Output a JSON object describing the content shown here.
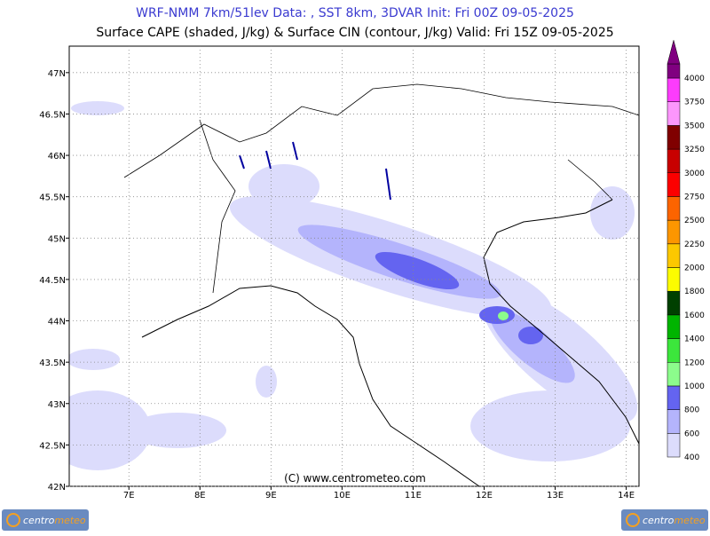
{
  "header": {
    "title": "WRF-NMM 7km/51lev  Data: , SST 8km, 3DVAR  Init: Fri 00Z 09-05-2025",
    "subtitle": "Surface CAPE (shaded, J/kg) & Surface CIN (contour, J/kg)  Valid: Fri 15Z 09-05-2025"
  },
  "map": {
    "xlim": [
      6.16,
      14.18
    ],
    "ylim": [
      42,
      47.32
    ],
    "grid": true,
    "xticks": [
      {
        "value": 7,
        "label": "7E"
      },
      {
        "value": 8,
        "label": "8E"
      },
      {
        "value": 9,
        "label": "9E"
      },
      {
        "value": 10,
        "label": "10E"
      },
      {
        "value": 11,
        "label": "11E"
      },
      {
        "value": 12,
        "label": "12E"
      },
      {
        "value": 13,
        "label": "13E"
      },
      {
        "value": 14,
        "label": "14E"
      }
    ],
    "yticks": [
      {
        "value": 42,
        "label": "42N"
      },
      {
        "value": 42.5,
        "label": "42.5N"
      },
      {
        "value": 43,
        "label": "43N"
      },
      {
        "value": 43.5,
        "label": "43.5N"
      },
      {
        "value": 44,
        "label": "44N"
      },
      {
        "value": 44.5,
        "label": "44.5N"
      },
      {
        "value": 45,
        "label": "45N"
      },
      {
        "value": 45.5,
        "label": "45.5N"
      },
      {
        "value": 46,
        "label": "46N"
      },
      {
        "value": 46.5,
        "label": "46.5N"
      },
      {
        "value": 47,
        "label": "47N"
      }
    ]
  },
  "colorbar": {
    "levels": [
      400,
      600,
      800,
      1000,
      1200,
      1400,
      1600,
      1800,
      2000,
      2250,
      2500,
      2750,
      3000,
      3250,
      3500,
      3750,
      4000
    ],
    "interval_colors": [
      "#dcdcfc",
      "#b4b4fc",
      "#6464f0",
      "#8cfc8c",
      "#3ce63c",
      "#00b400",
      "#004000",
      "#fcfc00",
      "#fcc800",
      "#fc9600",
      "#fc6400",
      "#fc0000",
      "#c80000",
      "#800000",
      "#fc96fc",
      "#fc3cfc"
    ],
    "extend_color": "#800080"
  },
  "copyright": "(C) www.centrometeo.com",
  "logo_text": [
    "centro",
    "meteo"
  ]
}
